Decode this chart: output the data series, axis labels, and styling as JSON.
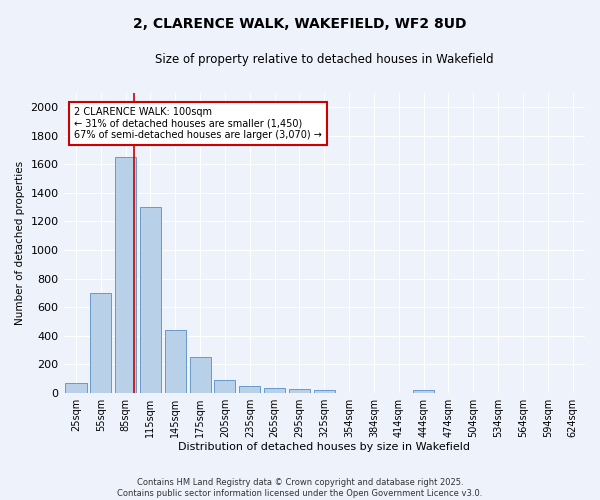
{
  "title_line1": "2, CLARENCE WALK, WAKEFIELD, WF2 8UD",
  "title_line2": "Size of property relative to detached houses in Wakefield",
  "xlabel": "Distribution of detached houses by size in Wakefield",
  "ylabel": "Number of detached properties",
  "categories": [
    "25sqm",
    "55sqm",
    "85sqm",
    "115sqm",
    "145sqm",
    "175sqm",
    "205sqm",
    "235sqm",
    "265sqm",
    "295sqm",
    "325sqm",
    "354sqm",
    "384sqm",
    "414sqm",
    "444sqm",
    "474sqm",
    "504sqm",
    "534sqm",
    "564sqm",
    "594sqm",
    "624sqm"
  ],
  "values": [
    65,
    700,
    1650,
    1300,
    440,
    250,
    90,
    50,
    30,
    25,
    20,
    0,
    0,
    0,
    20,
    0,
    0,
    0,
    0,
    0,
    0
  ],
  "bar_color": "#b8d0e8",
  "bar_edge_color": "#6699cc",
  "bar_width": 0.85,
  "red_line_x": 2.33,
  "annotation_text": "2 CLARENCE WALK: 100sqm\n← 31% of detached houses are smaller (1,450)\n67% of semi-detached houses are larger (3,070) →",
  "annotation_box_color": "#ffffff",
  "annotation_box_edge_color": "#cc0000",
  "ylim": [
    0,
    2100
  ],
  "yticks": [
    0,
    200,
    400,
    600,
    800,
    1000,
    1200,
    1400,
    1600,
    1800,
    2000
  ],
  "background_color": "#eef2fb",
  "grid_color": "#ffffff",
  "footer_line1": "Contains HM Land Registry data © Crown copyright and database right 2025.",
  "footer_line2": "Contains public sector information licensed under the Open Government Licence v3.0."
}
